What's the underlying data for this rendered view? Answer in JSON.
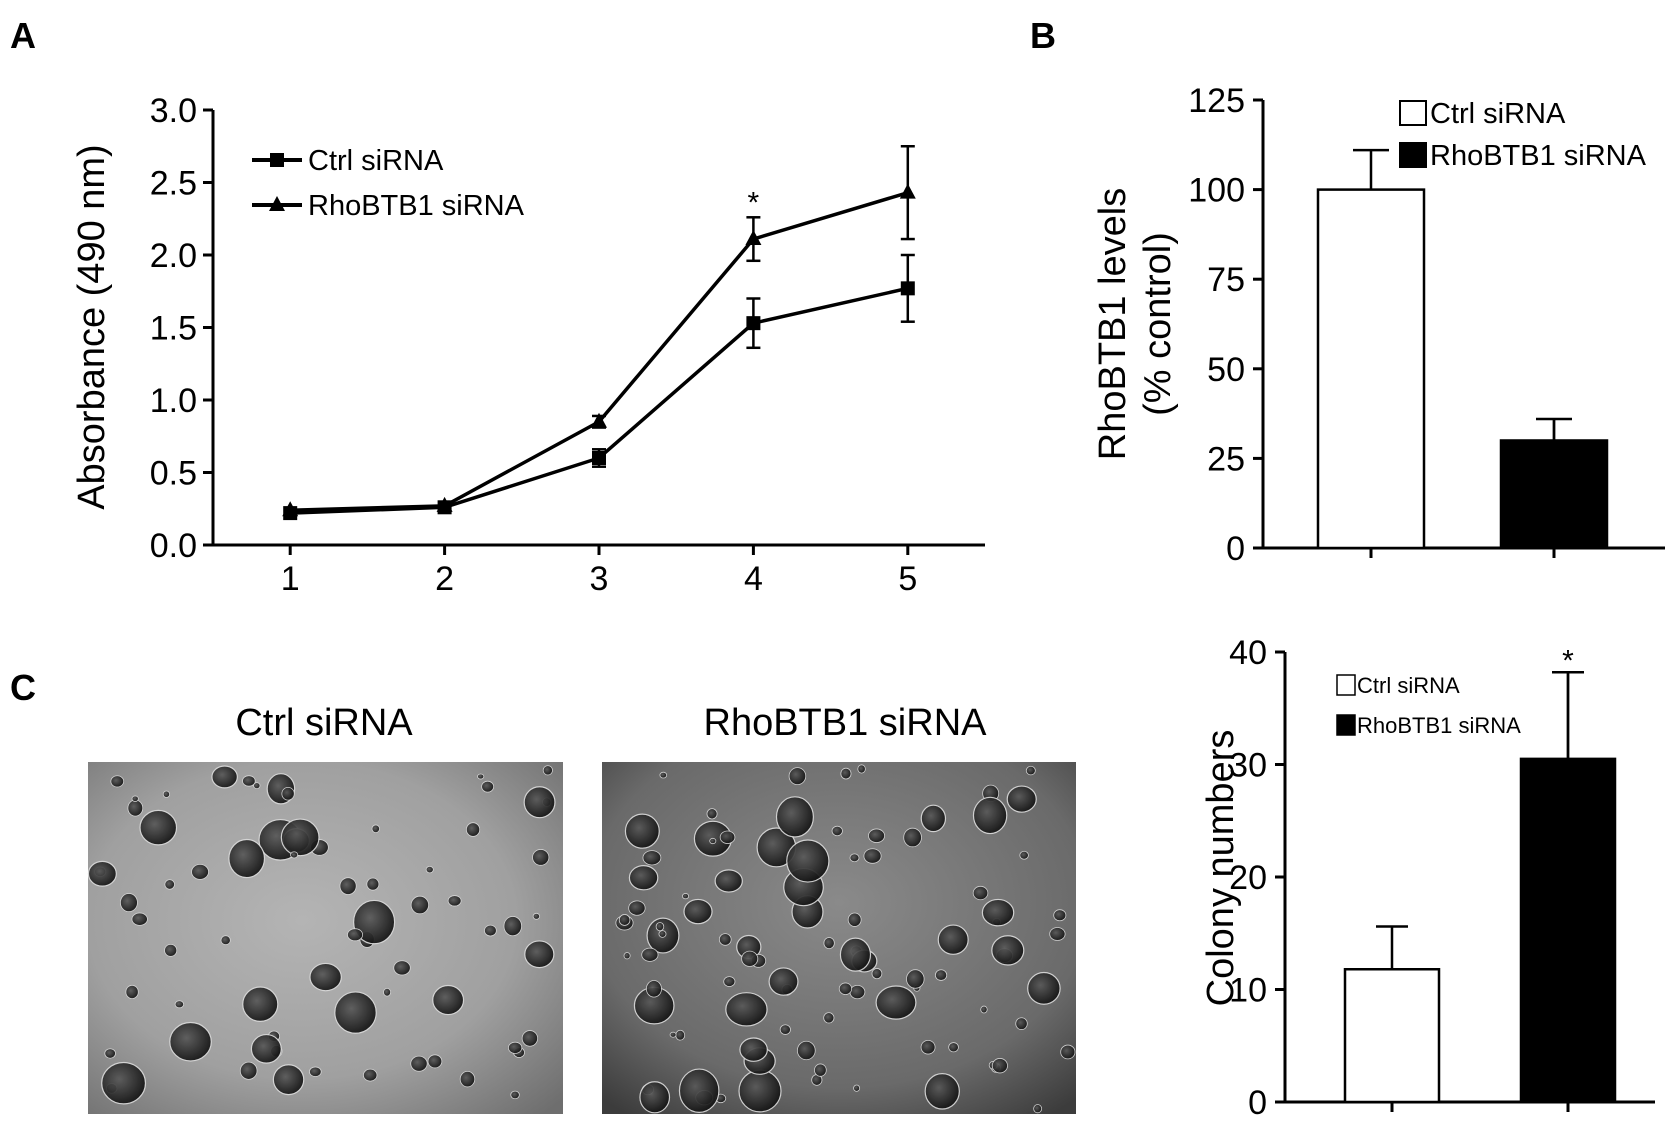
{
  "panels": {
    "a": "A",
    "b": "B",
    "c": "C"
  },
  "micrographs": {
    "left_title": "Ctrl siRNA",
    "right_title": "RhoBTB1 siRNA"
  },
  "chart_data": [
    {
      "type": "line",
      "panel": "A",
      "title": "",
      "xlabel": "",
      "ylabel": "Absorbance (490 nm)",
      "x": [
        1,
        2,
        3,
        4,
        5
      ],
      "xlim": [
        0.5,
        5.5
      ],
      "ylim": [
        0,
        3.0
      ],
      "yticks": [
        "0.0",
        "0.5",
        "1.0",
        "1.5",
        "2.0",
        "2.5",
        "3.0"
      ],
      "xticks": [
        "1",
        "2",
        "3",
        "4",
        "5"
      ],
      "legend_position": "top-left",
      "series": [
        {
          "name": "Ctrl siRNA",
          "marker": "square",
          "values": [
            0.22,
            0.26,
            0.6,
            1.53,
            1.77
          ],
          "errors": [
            0.02,
            0.02,
            0.06,
            0.17,
            0.23
          ]
        },
        {
          "name": "RhoBTB1 siRNA",
          "marker": "triangle",
          "values": [
            0.24,
            0.27,
            0.85,
            2.11,
            2.43
          ],
          "errors": [
            0.02,
            0.02,
            0.04,
            0.15,
            0.32
          ]
        }
      ],
      "annotations": [
        {
          "x": 4,
          "text": "*"
        }
      ]
    },
    {
      "type": "bar",
      "panel": "B",
      "title": "",
      "xlabel": "",
      "ylabel_line1": "RhoBTB1 levels",
      "ylabel_line2": "(% control)",
      "ylim": [
        0,
        125
      ],
      "yticks": [
        "0",
        "25",
        "50",
        "75",
        "100",
        "125"
      ],
      "legend_position": "top-right",
      "categories": [
        "Ctrl siRNA",
        "RhoBTB1 siRNA"
      ],
      "values": [
        100,
        30
      ],
      "errors": [
        11,
        6
      ],
      "fills": [
        "#ffffff",
        "#000000"
      ]
    },
    {
      "type": "bar",
      "panel": "C",
      "title": "",
      "xlabel": "",
      "ylabel": "Colony numbers",
      "ylim": [
        0,
        40
      ],
      "yticks": [
        "0",
        "10",
        "20",
        "30",
        "40"
      ],
      "legend_position": "top-left",
      "categories": [
        "Ctrl siRNA",
        "RhoBTB1 siRNA"
      ],
      "values": [
        11.8,
        30.5
      ],
      "errors": [
        3.8,
        7.7
      ],
      "fills": [
        "#ffffff",
        "#000000"
      ],
      "annotations": [
        {
          "category": "RhoBTB1 siRNA",
          "text": "*"
        }
      ]
    }
  ]
}
